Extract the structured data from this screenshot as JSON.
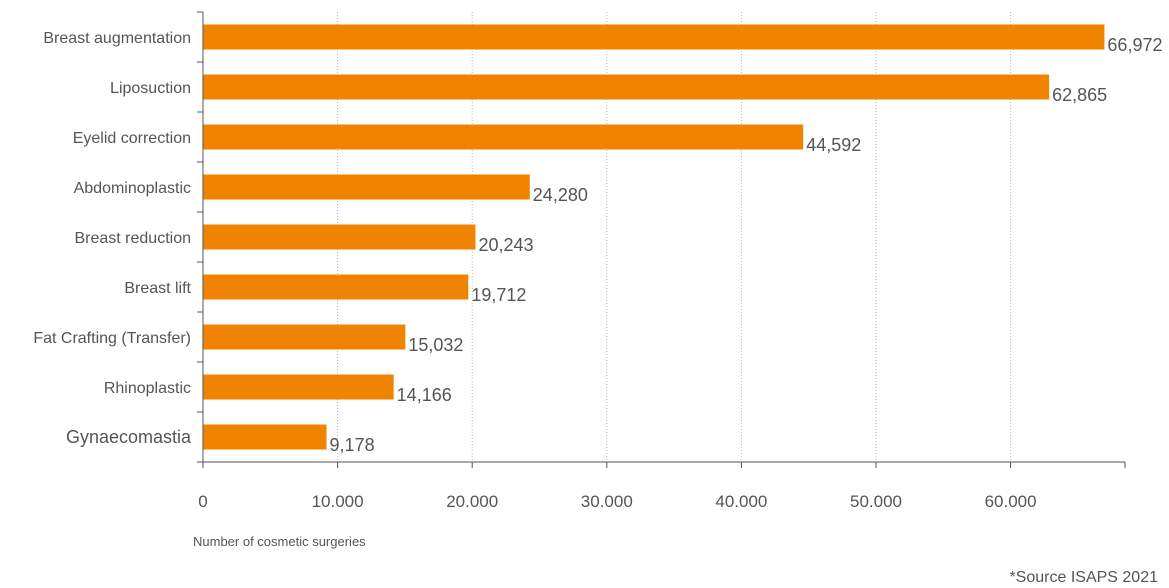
{
  "chart_data": {
    "type": "bar",
    "orientation": "horizontal",
    "categories": [
      "Breast augmentation",
      "Liposuction",
      "Eyelid correction",
      "Abdominoplastic",
      "Breast reduction",
      "Breast lift",
      "Fat Crafting (Transfer)",
      "Rhinoplastic",
      "Gynaecomastia"
    ],
    "values": [
      66972,
      62865,
      44592,
      24280,
      20243,
      19712,
      15032,
      14166,
      9178
    ],
    "value_labels": [
      "66,972",
      "62,865",
      "44,592",
      "24,280",
      "20,243",
      "19,712",
      "15,032",
      "14,166",
      "9,178"
    ],
    "x_ticks": [
      0,
      10000,
      20000,
      30000,
      40000,
      50000,
      60000
    ],
    "x_tick_labels": [
      "0",
      "10.000",
      "20.000",
      "30.000",
      "40.000",
      "50.000",
      "60.000"
    ],
    "xlim": [
      0,
      68500
    ],
    "xlabel": "Number of cosmetic surgeries",
    "ylabel": "",
    "title": "",
    "grid": "vertical dotted",
    "bar_color": "#f08400",
    "source_note": "*Source ISAPS 2021"
  }
}
